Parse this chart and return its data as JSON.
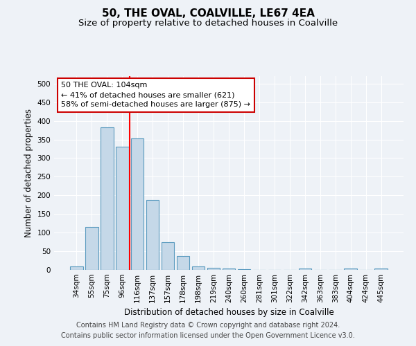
{
  "title": "50, THE OVAL, COALVILLE, LE67 4EA",
  "subtitle": "Size of property relative to detached houses in Coalville",
  "xlabel": "Distribution of detached houses by size in Coalville",
  "ylabel": "Number of detached properties",
  "categories": [
    "34sqm",
    "55sqm",
    "75sqm",
    "96sqm",
    "116sqm",
    "137sqm",
    "157sqm",
    "178sqm",
    "198sqm",
    "219sqm",
    "240sqm",
    "260sqm",
    "281sqm",
    "301sqm",
    "322sqm",
    "342sqm",
    "363sqm",
    "383sqm",
    "404sqm",
    "424sqm",
    "445sqm"
  ],
  "values": [
    10,
    115,
    383,
    330,
    352,
    188,
    75,
    37,
    10,
    6,
    3,
    1,
    0,
    0,
    0,
    3,
    0,
    0,
    3,
    0,
    3
  ],
  "bar_color": "#c5d8e8",
  "bar_edge_color": "#5a9abf",
  "bar_edge_width": 0.8,
  "red_line_x": 3.5,
  "annotation_line1": "50 THE OVAL: 104sqm",
  "annotation_line2": "← 41% of detached houses are smaller (621)",
  "annotation_line3": "58% of semi-detached houses are larger (875) →",
  "annotation_box_color": "#ffffff",
  "annotation_box_edge_color": "#cc0000",
  "ylim": [
    0,
    520
  ],
  "yticks": [
    0,
    50,
    100,
    150,
    200,
    250,
    300,
    350,
    400,
    450,
    500
  ],
  "footer_line1": "Contains HM Land Registry data © Crown copyright and database right 2024.",
  "footer_line2": "Contains public sector information licensed under the Open Government Licence v3.0.",
  "bg_color": "#eef2f7",
  "plot_bg_color": "#eef2f7",
  "grid_color": "#ffffff",
  "title_fontsize": 11,
  "subtitle_fontsize": 9.5,
  "axis_label_fontsize": 8.5,
  "tick_fontsize": 7.5,
  "annotation_fontsize": 8,
  "footer_fontsize": 7
}
